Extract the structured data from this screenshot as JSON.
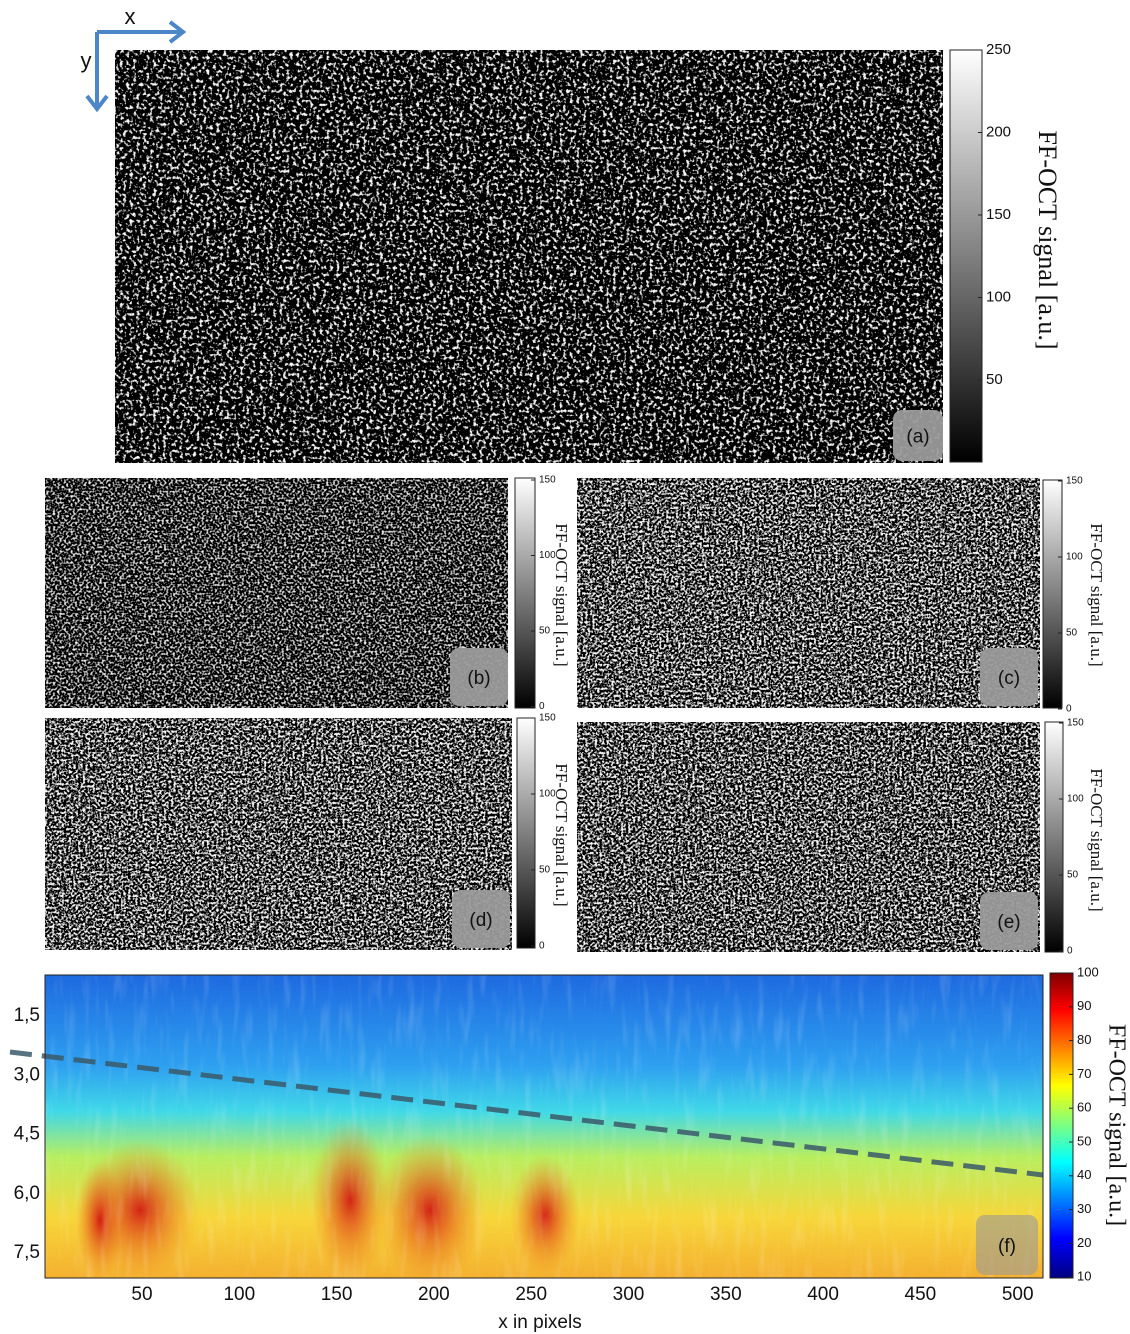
{
  "axis_labels": {
    "x": "x",
    "y": "y"
  },
  "panels": [
    {
      "label": "(a)",
      "colorbar_title": "FF-OCT signal [a.u.]",
      "colorbar_ticks": [
        250,
        200,
        150,
        100,
        50
      ]
    },
    {
      "label": "(b)",
      "colorbar_title": "FF-OCT signal [a.u.]",
      "colorbar_ticks": [
        150,
        100,
        50,
        0
      ]
    },
    {
      "label": "(c)",
      "colorbar_title": "FF-OCT signal [a.u.]",
      "colorbar_ticks": [
        150,
        100,
        50,
        0
      ]
    },
    {
      "label": "(d)",
      "colorbar_title": "FF-OCT signal [a.u.]",
      "colorbar_ticks": [
        150,
        100,
        50,
        0
      ]
    },
    {
      "label": "(e)",
      "colorbar_title": "FF-OCT signal [a.u.]",
      "colorbar_ticks": [
        150,
        100,
        50,
        0
      ]
    },
    {
      "label": "(f)",
      "colorbar_title": "FF-OCT signal [a.u.]",
      "colorbar_ticks": [
        100,
        90,
        80,
        70,
        60,
        50,
        40,
        30,
        20,
        10
      ],
      "x_ticks": [
        50,
        100,
        150,
        200,
        250,
        300,
        350,
        400,
        450,
        500
      ],
      "y_ticks": [
        "1,5",
        "3,0",
        "4,5",
        "6,0",
        "7,5"
      ],
      "x_label": "x in pixels"
    }
  ]
}
